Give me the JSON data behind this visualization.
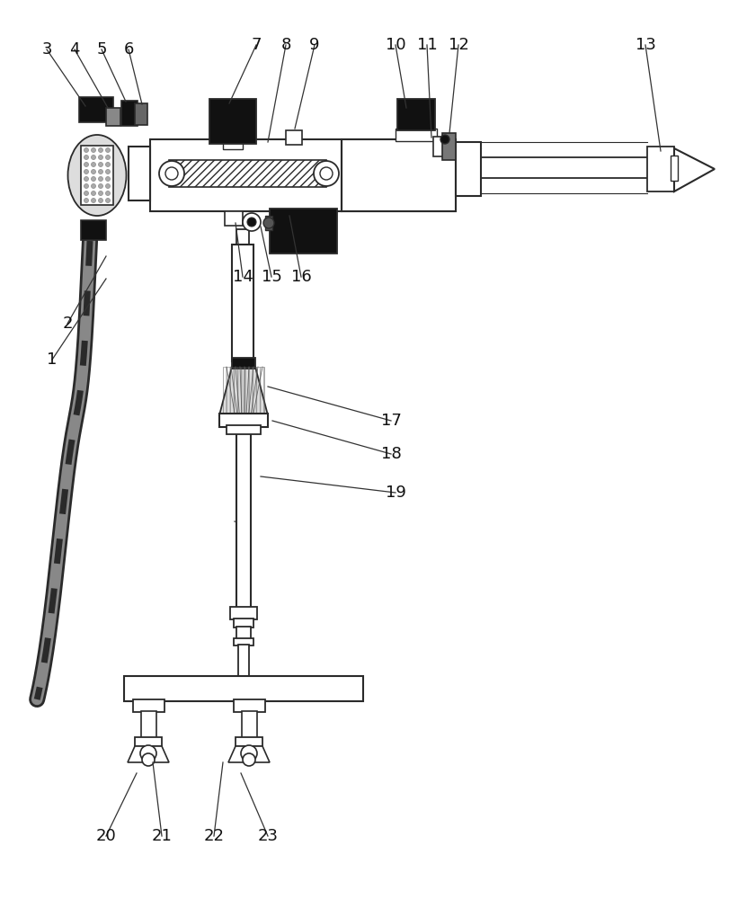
{
  "bg_color": "#ffffff",
  "lc": "#2a2a2a",
  "dc": "#111111",
  "font_size": 13,
  "labels_data": [
    [
      "1",
      58,
      400,
      118,
      310
    ],
    [
      "2",
      75,
      360,
      118,
      285
    ],
    [
      "3",
      52,
      55,
      95,
      118
    ],
    [
      "4",
      83,
      55,
      120,
      120
    ],
    [
      "5",
      113,
      55,
      140,
      113
    ],
    [
      "6",
      143,
      55,
      158,
      116
    ],
    [
      "7",
      285,
      50,
      255,
      115
    ],
    [
      "8",
      318,
      50,
      298,
      158
    ],
    [
      "9",
      350,
      50,
      328,
      143
    ],
    [
      "10",
      440,
      50,
      452,
      120
    ],
    [
      "11",
      475,
      50,
      480,
      153
    ],
    [
      "12",
      510,
      50,
      500,
      148
    ],
    [
      "13",
      718,
      50,
      735,
      168
    ],
    [
      "14",
      270,
      308,
      262,
      248
    ],
    [
      "15",
      302,
      308,
      290,
      252
    ],
    [
      "16",
      335,
      308,
      322,
      240
    ],
    [
      "17",
      435,
      468,
      298,
      430
    ],
    [
      "18",
      435,
      505,
      303,
      468
    ],
    [
      "19",
      440,
      548,
      290,
      530
    ],
    [
      "20",
      118,
      930,
      152,
      860
    ],
    [
      "21",
      180,
      930,
      170,
      848
    ],
    [
      "22",
      238,
      930,
      248,
      848
    ],
    [
      "23",
      298,
      930,
      268,
      860
    ]
  ]
}
